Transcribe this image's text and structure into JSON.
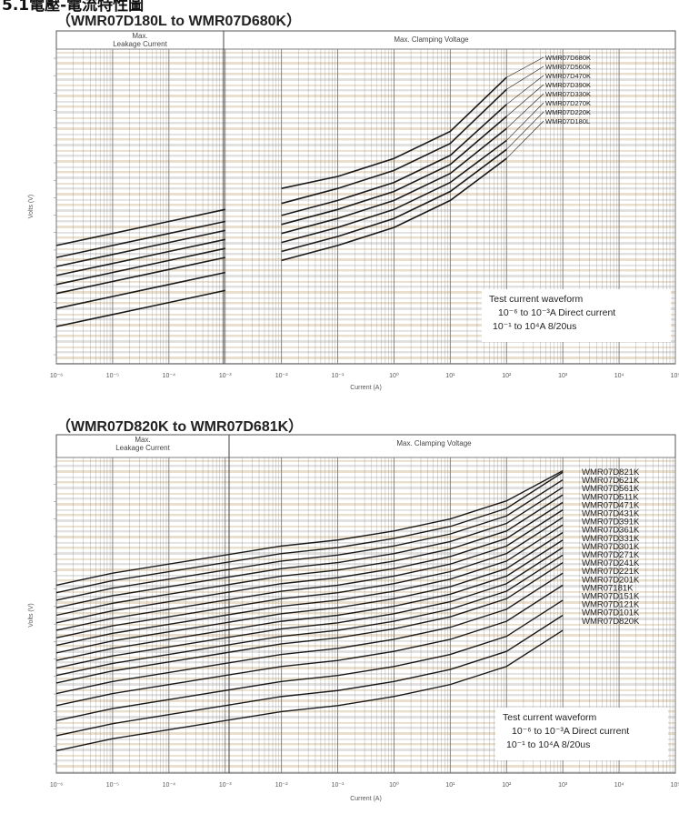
{
  "page_heading": "5.1電壓-電流特性圖",
  "chart_data": [
    {
      "type": "line",
      "title": "（WMR07D180L to WMR07D680K）",
      "xlabel": "Current (A)",
      "ylabel": "Volts (V)",
      "x_ticks": [
        "10⁻⁶",
        "10⁻⁵",
        "10⁻⁴",
        "10⁻³",
        "10⁻²",
        "10⁻¹",
        "10⁰",
        "10¹",
        "10²",
        "10³",
        "10⁴",
        "10⁵"
      ],
      "xlim": [
        1e-06,
        100000
      ],
      "scale": "log",
      "regions": [
        "Max. Leakage Current",
        "Max. Clamping Voltage"
      ],
      "series": [
        {
          "name": "WMR07D680K",
          "x": [
            1e-06,
            1e-05,
            0.0001,
            0.001,
            0.01,
            0.1,
            1,
            10,
            100
          ],
          "y": [
            0.37,
            0.41,
            0.45,
            0.49,
            0.56,
            0.6,
            0.66,
            0.75,
            0.93
          ]
        },
        {
          "name": "WMR07D560K",
          "x": [
            1e-06,
            1e-05,
            0.0001,
            0.001,
            0.01,
            0.1,
            1,
            10,
            100
          ],
          "y": [
            0.33,
            0.37,
            0.41,
            0.45,
            0.51,
            0.56,
            0.62,
            0.71,
            0.89
          ]
        },
        {
          "name": "WMR07D470K",
          "x": [
            1e-06,
            1e-05,
            0.0001,
            0.001,
            0.01,
            0.1,
            1,
            10,
            100
          ],
          "y": [
            0.3,
            0.34,
            0.38,
            0.42,
            0.47,
            0.52,
            0.58,
            0.67,
            0.84
          ]
        },
        {
          "name": "WMR07D390K",
          "x": [
            1e-06,
            1e-05,
            0.0001,
            0.001,
            0.01,
            0.1,
            1,
            10,
            100
          ],
          "y": [
            0.27,
            0.31,
            0.35,
            0.39,
            0.44,
            0.49,
            0.55,
            0.64,
            0.8
          ]
        },
        {
          "name": "WMR07D330K",
          "x": [
            1e-06,
            1e-05,
            0.0001,
            0.001,
            0.01,
            0.1,
            1,
            10,
            100
          ],
          "y": [
            0.24,
            0.28,
            0.32,
            0.36,
            0.41,
            0.46,
            0.52,
            0.61,
            0.76
          ]
        },
        {
          "name": "WMR07D270K",
          "x": [
            1e-06,
            1e-05,
            0.0001,
            0.001,
            0.01,
            0.1,
            1,
            10,
            100
          ],
          "y": [
            0.21,
            0.25,
            0.29,
            0.33,
            0.38,
            0.43,
            0.49,
            0.58,
            0.72
          ]
        },
        {
          "name": "WMR07D220K",
          "x": [
            1e-06,
            1e-05,
            0.0001,
            0.001,
            0.01,
            0.1,
            1,
            10,
            100
          ],
          "y": [
            0.16,
            0.2,
            0.24,
            0.28,
            0.35,
            0.4,
            0.46,
            0.55,
            0.69
          ]
        },
        {
          "name": "WMR07D180L",
          "x": [
            1e-06,
            1e-05,
            0.0001,
            0.001,
            0.01,
            0.1,
            1,
            10,
            100
          ],
          "y": [
            0.1,
            0.14,
            0.18,
            0.22,
            0.32,
            0.37,
            0.43,
            0.52,
            0.66
          ]
        }
      ],
      "annotation": [
        "Test current waveform",
        "10⁻⁶ to 10⁻³A Direct current",
        "10⁻¹ to 10⁴A 8/20us"
      ]
    },
    {
      "type": "line",
      "title": "（WMR07D820K to WMR07D681K）",
      "xlabel": "Current (A)",
      "ylabel": "Volts (V)",
      "x_ticks": [
        "10⁻⁶",
        "10⁻⁵",
        "10⁻⁴",
        "10⁻³",
        "10⁻²",
        "10⁻¹",
        "10⁰",
        "10¹",
        "10²",
        "10³",
        "10⁴",
        "10⁵"
      ],
      "xlim": [
        1e-06,
        100000
      ],
      "scale": "log",
      "regions": [
        "Max. Leakage Current",
        "Max. Clamping Voltage"
      ],
      "series": [
        {
          "name": "WMR07D821K",
          "base": 0.6
        },
        {
          "name": "WMR07D621K",
          "base": 0.575
        },
        {
          "name": "WMR07D561K",
          "base": 0.55
        },
        {
          "name": "WMR07D511K",
          "base": 0.525
        },
        {
          "name": "WMR07D471K",
          "base": 0.5
        },
        {
          "name": "WMR07D431K",
          "base": 0.475
        },
        {
          "name": "WMR07D391K",
          "base": 0.45
        },
        {
          "name": "WMR07D361K",
          "base": 0.425
        },
        {
          "name": "WMR07D331K",
          "base": 0.4
        },
        {
          "name": "WMR07D301K",
          "base": 0.375
        },
        {
          "name": "WMR07D271K",
          "base": 0.35
        },
        {
          "name": "WMR07D241K",
          "base": 0.325
        },
        {
          "name": "WMR07D221K",
          "base": 0.3
        },
        {
          "name": "WMR07D201K",
          "base": 0.275
        },
        {
          "name": "WMR07181K",
          "base": 0.24
        },
        {
          "name": "WMR07D151K",
          "base": 0.2
        },
        {
          "name": "WMR07D121K",
          "base": 0.15
        },
        {
          "name": "WMR07D101K",
          "base": 0.1
        },
        {
          "name": "WMR07D820K",
          "base": 0.05
        }
      ],
      "annotation": [
        "Test current waveform",
        "10⁻⁶ to 10⁻³A Direct current",
        "10⁻¹ to 10⁴A 8/20us"
      ]
    }
  ],
  "colors": {
    "line": "#1a1a1a",
    "grid": "#7a7a7a",
    "band_tan": "#d9c2a3",
    "band_gray": "#c9c9c9"
  }
}
